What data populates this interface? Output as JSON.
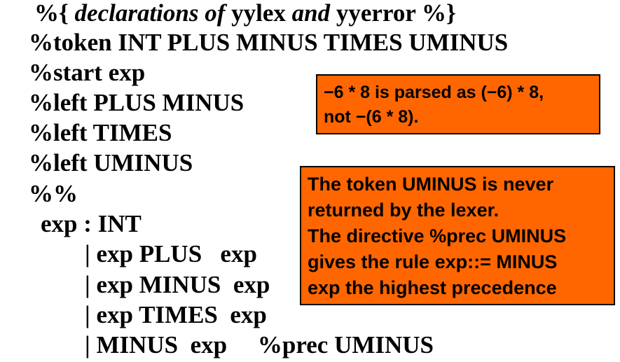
{
  "grammar": {
    "header": {
      "open": "%{ ",
      "word1": "declarations of",
      "space1": " ",
      "word2": "yylex",
      "space2": " ",
      "word3": "and",
      "space3": " ",
      "word4": "yyerror",
      "close": " %}"
    },
    "token_decl": "%token INT PLUS MINUS TIMES UMINUS",
    "start_decl": "%start exp",
    "left_1": "%left PLUS MINUS",
    "left_2": "%left TIMES",
    "left_3": "%left UMINUS",
    "separator": "%%",
    "rule_head": "exp : INT",
    "alt_1": "| exp PLUS   exp",
    "alt_2": "| exp MINUS  exp",
    "alt_3": "| exp TIMES  exp",
    "alt_4": "| MINUS  exp     %prec UMINUS"
  },
  "notes": {
    "note_1": {
      "lines": [
        "−6 * 8 is parsed as (−6) * 8,",
        "not −(6 * 8)."
      ]
    },
    "note_2": {
      "lines": [
        "The token UMINUS is never",
        "returned by the lexer.",
        "The directive %prec UMINUS",
        "gives the rule exp::= MINUS",
        "exp the highest precedence"
      ]
    },
    "background_color": "#ff6600"
  }
}
